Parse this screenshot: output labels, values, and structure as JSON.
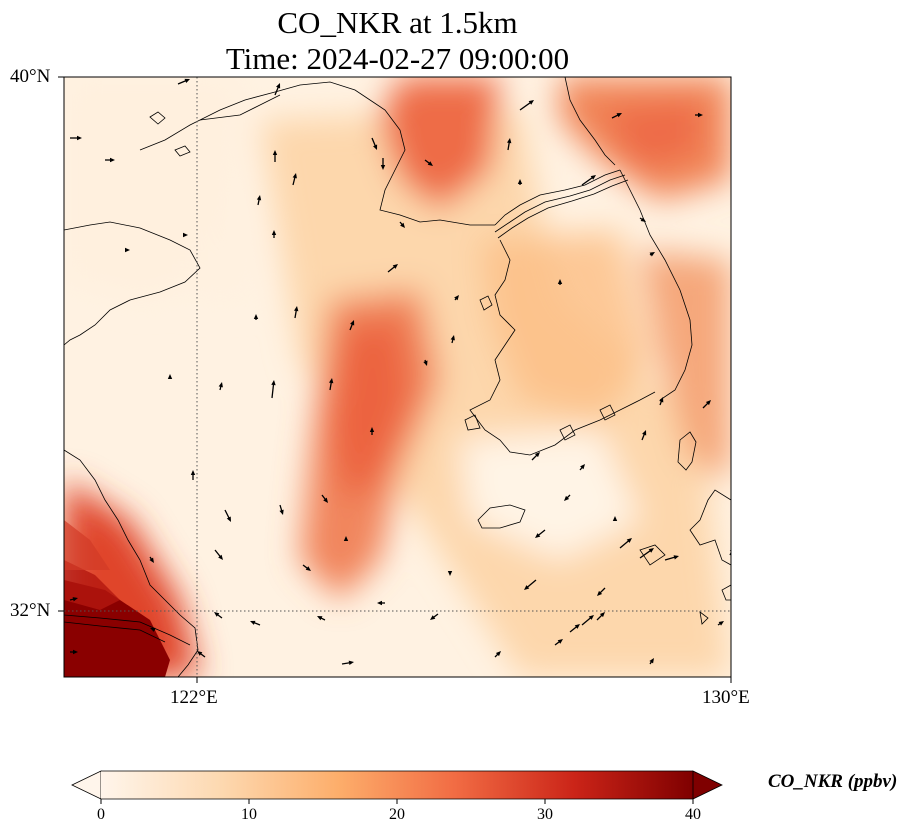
{
  "title": {
    "line1": "CO_NKR at 1.5km",
    "line2": "Time: 2024-02-27 09:00:00"
  },
  "map": {
    "lon_range": [
      120,
      130
    ],
    "lat_range": [
      31,
      40
    ],
    "gridlines": {
      "lons": [
        122,
        130
      ],
      "lats": [
        32,
        40
      ],
      "style": "dotted"
    },
    "lat_labels": [
      "40°N",
      "32°N"
    ],
    "lon_labels": [
      "122°E",
      "130°E"
    ],
    "variable": "CO_NKR",
    "level": "1.5km"
  },
  "colorbar": {
    "label": "CO_NKR (ppbv)",
    "ticks": [
      "0",
      "10",
      "20",
      "30",
      "40"
    ],
    "range": [
      0,
      40
    ],
    "colormap": [
      "#fff5eb",
      "#fdd9b1",
      "#fdae6b",
      "#f16b43",
      "#cb2418",
      "#7f0000"
    ],
    "extend": "both"
  }
}
